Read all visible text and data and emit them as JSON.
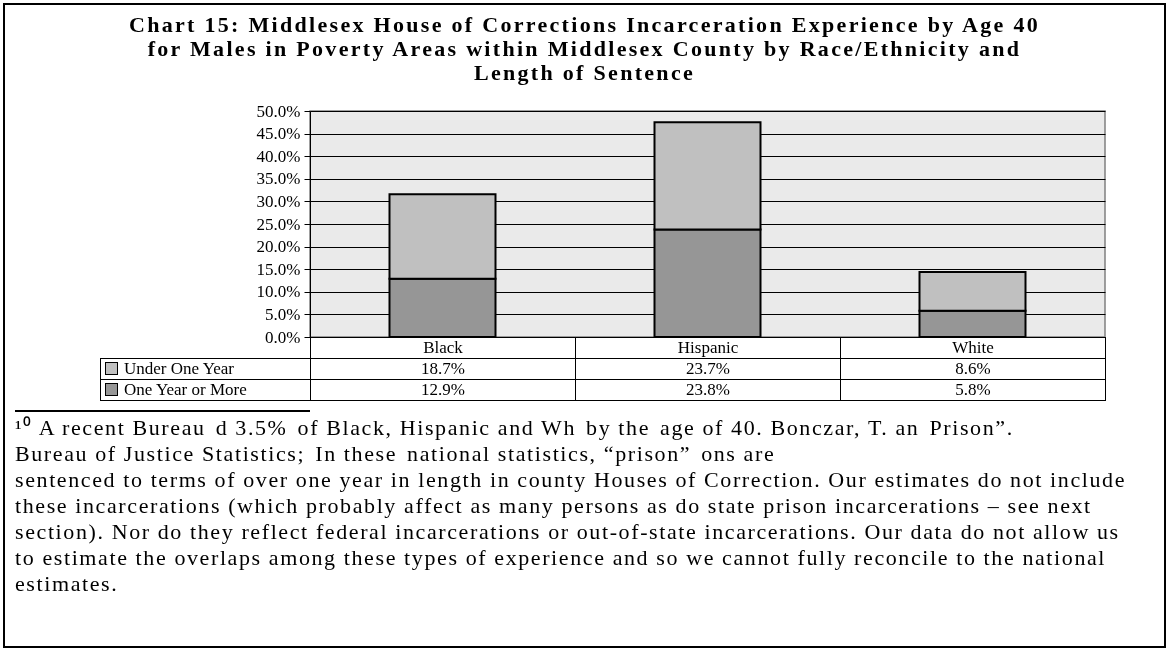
{
  "chart_data": {
    "type": "bar",
    "title": "Chart 15: Middlesex House of Corrections Incarceration Experience by Age 40 for Males in Poverty Areas within Middlesex County by Race/Ethnicity and Length of Sentence",
    "categories": [
      "Black",
      "Hispanic",
      "White"
    ],
    "series": [
      {
        "name": "One Year or More",
        "color": "#969696",
        "values": [
          12.9,
          23.8,
          5.8
        ],
        "value_labels": [
          "12.9%",
          "23.8%",
          "5.8%"
        ]
      },
      {
        "name": "Under One Year",
        "color": "#c0c0c0",
        "values": [
          18.7,
          23.7,
          8.6
        ],
        "value_labels": [
          "18.7%",
          "23.7%",
          "8.6%"
        ]
      }
    ],
    "stacked": true,
    "ylim": [
      0,
      50
    ],
    "yticks": [
      {
        "value": 0,
        "label": "0.0%"
      },
      {
        "value": 5,
        "label": "5.0%"
      },
      {
        "value": 10,
        "label": "10.0%"
      },
      {
        "value": 15,
        "label": "15.0%"
      },
      {
        "value": 20,
        "label": "20.0%"
      },
      {
        "value": 25,
        "label": "25.0%"
      },
      {
        "value": 30,
        "label": "30.0%"
      },
      {
        "value": 35,
        "label": "35.0%"
      },
      {
        "value": 40,
        "label": "40.0%"
      },
      {
        "value": 45,
        "label": "45.0%"
      },
      {
        "value": 50,
        "label": "50.0%"
      }
    ],
    "grid": "y",
    "legend": "bottom",
    "annotations": [
      "¹⁰ A recent Bureau",
      "d 3.5%",
      "of Black, Hispanic and Wh",
      "by the",
      "age of 40. Bonczar, T. an",
      "Prison”.",
      "Bureau of Justice Statistics;",
      "In these",
      "national statistics, “prison”",
      "ons are",
      "sentenced to terms of over one year in length in county Houses of Correction. Our estimates do not include",
      "these incarcerations (which probably affect as many persons as do state prison incarcerations – see next",
      "section). Nor do they reflect federal incarcerations or out-of-state incarcerations. Our data do not allow us",
      "to estimate the overlaps among these types of experience and so we cannot fully reconcile to the national",
      "estimates."
    ]
  }
}
